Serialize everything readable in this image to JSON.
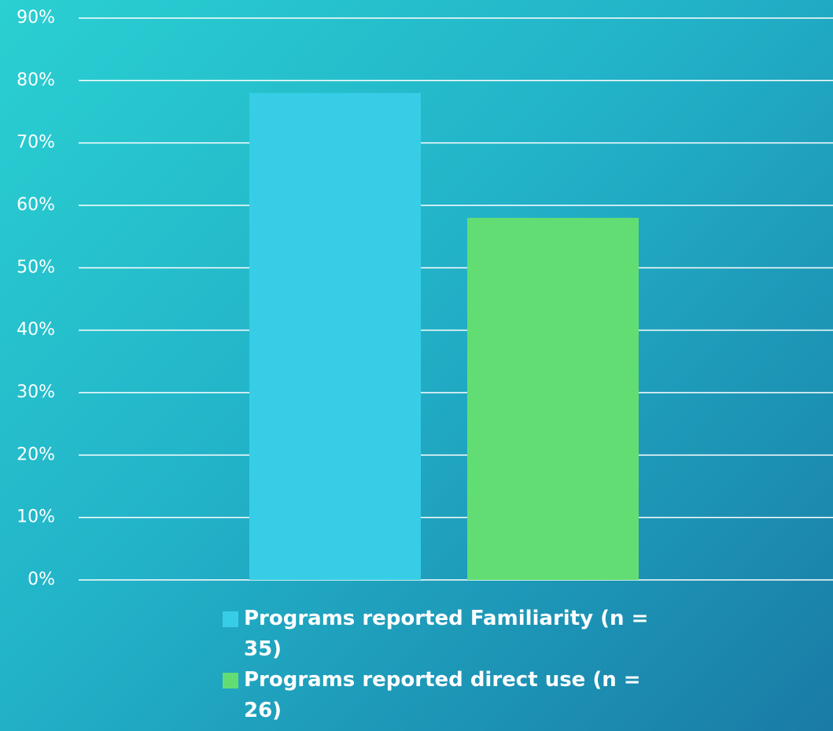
{
  "chart_data": {
    "type": "bar",
    "categories": [
      null
    ],
    "series": [
      {
        "name": "Programs reported Familiarity (n = 35)",
        "color": "#38cde6",
        "values": [
          78
        ]
      },
      {
        "name": "Programs reported direct use (n = 26)",
        "color": "#62dd74",
        "values": [
          58
        ]
      }
    ],
    "ylim": [
      0,
      90
    ],
    "yticks": [
      {
        "value": 0,
        "label": "0%"
      },
      {
        "value": 10,
        "label": "10%"
      },
      {
        "value": 20,
        "label": "20%"
      },
      {
        "value": 30,
        "label": "30%"
      },
      {
        "value": 40,
        "label": "40%"
      },
      {
        "value": 50,
        "label": "50%"
      },
      {
        "value": 60,
        "label": "60%"
      },
      {
        "value": 70,
        "label": "70%"
      },
      {
        "value": 80,
        "label": "80%"
      },
      {
        "value": 90,
        "label": "90%"
      }
    ],
    "grid": true,
    "legend": "bottom"
  }
}
